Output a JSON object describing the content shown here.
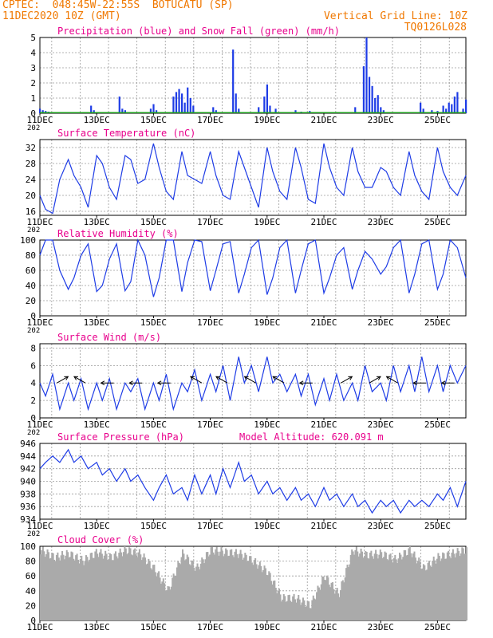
{
  "header": {
    "line1": "CPTEC:  048:45W-22:55S  BOTUCATU (SP)",
    "line2": "11DEC2020 10Z (GMT)",
    "grid_note": "Vertical Grid Line: 10Z",
    "run_id": "TQ0126L028"
  },
  "colors": {
    "orange": "#f07800",
    "magenta": "#e8008c",
    "blue": "#1e3ce6",
    "green": "#1ea01e",
    "gray": "#aaaaaa",
    "grid": "#9a9a9a"
  },
  "x_axis": {
    "dates": [
      "11DEC",
      "13DEC",
      "15DEC",
      "17DEC",
      "19DEC",
      "21DEC",
      "23DEC",
      "25DEC"
    ],
    "date_days": [
      11,
      13,
      15,
      17,
      19,
      21,
      23,
      25
    ],
    "range_days": [
      11.0,
      26.0
    ],
    "stub_label": "202"
  },
  "chart_data": [
    {
      "type": "bar",
      "title": "Precipitation (blue) and Snow Fall (green) (mm/h)",
      "ylim": [
        0,
        5
      ],
      "yticks": [
        "0",
        "1",
        "2",
        "3",
        "4",
        "5"
      ],
      "series": [
        {
          "name": "Precipitation",
          "color": "blue",
          "x": [
            11.0,
            11.1,
            11.2,
            11.3,
            12.8,
            12.9,
            13.8,
            13.9,
            14.0,
            14.9,
            15.0,
            15.1,
            15.7,
            15.8,
            15.9,
            16.0,
            16.1,
            16.2,
            16.3,
            16.4,
            17.1,
            17.2,
            17.8,
            17.9,
            18.0,
            18.7,
            18.9,
            19.0,
            19.1,
            19.3,
            20.0,
            20.2,
            20.5,
            22.1,
            22.4,
            22.5,
            22.6,
            22.7,
            22.8,
            22.9,
            23.0,
            23.1,
            24.4,
            24.5,
            24.8,
            25.0,
            25.2,
            25.3,
            25.4,
            25.5,
            25.6,
            25.7,
            25.9,
            26.0
          ],
          "values": [
            0.3,
            0.2,
            0.15,
            0.1,
            0.5,
            0.2,
            1.1,
            0.3,
            0.2,
            0.3,
            0.6,
            0.2,
            1.1,
            1.4,
            1.6,
            1.3,
            0.7,
            1.7,
            1.0,
            0.5,
            0.4,
            0.2,
            4.2,
            1.3,
            0.3,
            0.4,
            1.1,
            1.9,
            0.5,
            0.3,
            0.2,
            0.1,
            0.15,
            0.4,
            3.1,
            5.0,
            2.4,
            1.8,
            1.0,
            1.2,
            0.4,
            0.2,
            0.7,
            0.3,
            0.2,
            0.15,
            0.5,
            0.3,
            0.7,
            0.6,
            1.1,
            1.4,
            0.3,
            0.9
          ]
        },
        {
          "name": "Snow Fall",
          "color": "green",
          "values": "0"
        }
      ]
    },
    {
      "type": "line",
      "title": "Surface Temperature (nC)",
      "ylim": [
        15,
        34
      ],
      "yticks": [
        16,
        20,
        24,
        28,
        32
      ],
      "series": [
        {
          "name": "Surface Temperature",
          "color": "blue",
          "x": [
            11.0,
            11.2,
            11.45,
            11.7,
            12.0,
            12.2,
            12.45,
            12.7,
            13.0,
            13.2,
            13.45,
            13.7,
            14.0,
            14.2,
            14.45,
            14.7,
            15.0,
            15.2,
            15.45,
            15.7,
            16.0,
            16.2,
            16.45,
            16.7,
            17.0,
            17.2,
            17.45,
            17.7,
            18.0,
            18.2,
            18.45,
            18.7,
            19.0,
            19.2,
            19.45,
            19.7,
            20.0,
            20.2,
            20.45,
            20.7,
            21.0,
            21.2,
            21.45,
            21.7,
            22.0,
            22.2,
            22.45,
            22.7,
            23.0,
            23.2,
            23.45,
            23.7,
            24.0,
            24.2,
            24.45,
            24.7,
            25.0,
            25.2,
            25.45,
            25.7,
            26.0
          ],
          "values": [
            20,
            16.5,
            15.5,
            24,
            29,
            25,
            22,
            17,
            30,
            28,
            22,
            19,
            30,
            29,
            23,
            24,
            33,
            27,
            21,
            19,
            31,
            25,
            24,
            23,
            31,
            25,
            20,
            19,
            31,
            27,
            22,
            17,
            32,
            26,
            21,
            19,
            32,
            27,
            19,
            18,
            33,
            27,
            22,
            20,
            32,
            26,
            22,
            22,
            27,
            26,
            22,
            20,
            31,
            25,
            21,
            19,
            32,
            26,
            22,
            20,
            25
          ]
        }
      ]
    },
    {
      "type": "line",
      "title": "Relative Humidity (%)",
      "ylim": [
        0,
        100
      ],
      "yticks": [
        0,
        20,
        40,
        60,
        80,
        100
      ],
      "series": [
        {
          "name": "Relative Humidity",
          "color": "blue",
          "x": [
            11.0,
            11.2,
            11.45,
            11.7,
            12.0,
            12.2,
            12.45,
            12.7,
            13.0,
            13.2,
            13.45,
            13.7,
            14.0,
            14.2,
            14.45,
            14.7,
            15.0,
            15.2,
            15.45,
            15.7,
            16.0,
            16.2,
            16.45,
            16.7,
            17.0,
            17.2,
            17.45,
            17.7,
            18.0,
            18.2,
            18.45,
            18.7,
            19.0,
            19.2,
            19.45,
            19.7,
            20.0,
            20.2,
            20.45,
            20.7,
            21.0,
            21.2,
            21.45,
            21.7,
            22.0,
            22.2,
            22.45,
            22.7,
            23.0,
            23.2,
            23.45,
            23.7,
            24.0,
            24.2,
            24.45,
            24.7,
            25.0,
            25.2,
            25.45,
            25.7,
            26.0
          ],
          "values": [
            80,
            100,
            100,
            60,
            35,
            50,
            80,
            95,
            32,
            40,
            75,
            95,
            33,
            45,
            100,
            80,
            25,
            50,
            100,
            100,
            32,
            70,
            100,
            98,
            33,
            60,
            95,
            98,
            30,
            55,
            90,
            100,
            28,
            50,
            90,
            100,
            30,
            60,
            95,
            100,
            30,
            50,
            80,
            90,
            35,
            60,
            85,
            75,
            55,
            65,
            90,
            100,
            30,
            55,
            95,
            100,
            35,
            55,
            100,
            90,
            50
          ]
        }
      ]
    },
    {
      "type": "line",
      "title": "Surface Wind (m/s)",
      "ylim": [
        0,
        8.5
      ],
      "yticks": [
        0,
        2,
        4,
        6,
        8
      ],
      "series": [
        {
          "name": "Surface Wind",
          "color": "blue",
          "x": [
            11.0,
            11.2,
            11.45,
            11.7,
            12.0,
            12.2,
            12.45,
            12.7,
            13.0,
            13.2,
            13.45,
            13.7,
            14.0,
            14.2,
            14.45,
            14.7,
            15.0,
            15.2,
            15.45,
            15.7,
            16.0,
            16.2,
            16.45,
            16.7,
            17.0,
            17.2,
            17.45,
            17.7,
            18.0,
            18.2,
            18.45,
            18.7,
            19.0,
            19.2,
            19.45,
            19.7,
            20.0,
            20.2,
            20.45,
            20.7,
            21.0,
            21.2,
            21.45,
            21.7,
            22.0,
            22.2,
            22.45,
            22.7,
            23.0,
            23.2,
            23.45,
            23.7,
            24.0,
            24.2,
            24.45,
            24.7,
            25.0,
            25.2,
            25.45,
            25.7,
            26.0
          ],
          "values": [
            4,
            2.5,
            5,
            1,
            4,
            2,
            4.5,
            1,
            4,
            2,
            4.5,
            1,
            4,
            3,
            4.5,
            1,
            4,
            2,
            5,
            1,
            4,
            3,
            5.5,
            2,
            5,
            3,
            6,
            2,
            7,
            4,
            6,
            3,
            7,
            4,
            5,
            3,
            5,
            2.5,
            5,
            1.5,
            4.5,
            2,
            5,
            2,
            4,
            2,
            6,
            3,
            4,
            2,
            6,
            3,
            6,
            3,
            7,
            3,
            6,
            3,
            6,
            4,
            6
          ]
        }
      ],
      "arrows": [
        {
          "x": 11.6,
          "dir": "ne"
        },
        {
          "x": 12.6,
          "dir": "nw"
        },
        {
          "x": 13.6,
          "dir": "w"
        },
        {
          "x": 14.6,
          "dir": "w"
        },
        {
          "x": 15.6,
          "dir": "w"
        },
        {
          "x": 16.7,
          "dir": "nw"
        },
        {
          "x": 17.6,
          "dir": "nw"
        },
        {
          "x": 18.6,
          "dir": "nw"
        },
        {
          "x": 19.6,
          "dir": "nw"
        },
        {
          "x": 20.6,
          "dir": "w"
        },
        {
          "x": 21.6,
          "dir": "ne"
        },
        {
          "x": 22.6,
          "dir": "ne"
        },
        {
          "x": 23.6,
          "dir": "nw"
        },
        {
          "x": 24.6,
          "dir": "w"
        },
        {
          "x": 25.6,
          "dir": "w"
        }
      ]
    },
    {
      "type": "line",
      "title": "Surface Pressure (hPa)",
      "subtitle": "Model Altitude: 620.091 m",
      "ylim": [
        934,
        946
      ],
      "yticks": [
        934,
        936,
        938,
        940,
        942,
        944,
        946
      ],
      "series": [
        {
          "name": "Surface Pressure",
          "color": "blue",
          "x": [
            11.0,
            11.2,
            11.45,
            11.7,
            12.0,
            12.2,
            12.45,
            12.7,
            13.0,
            13.2,
            13.45,
            13.7,
            14.0,
            14.2,
            14.45,
            14.7,
            15.0,
            15.2,
            15.45,
            15.7,
            16.0,
            16.2,
            16.45,
            16.7,
            17.0,
            17.2,
            17.45,
            17.7,
            18.0,
            18.2,
            18.45,
            18.7,
            19.0,
            19.2,
            19.45,
            19.7,
            20.0,
            20.2,
            20.45,
            20.7,
            21.0,
            21.2,
            21.45,
            21.7,
            22.0,
            22.2,
            22.45,
            22.7,
            23.0,
            23.2,
            23.45,
            23.7,
            24.0,
            24.2,
            24.45,
            24.7,
            25.0,
            25.2,
            25.45,
            25.7,
            26.0
          ],
          "values": [
            942,
            943,
            944,
            943,
            945,
            943,
            944,
            942,
            943,
            941,
            942,
            940,
            942,
            940,
            941,
            939,
            937,
            939,
            941,
            938,
            939,
            937,
            941,
            938,
            941,
            938,
            942,
            939,
            943,
            940,
            941,
            938,
            940,
            938,
            939,
            937,
            939,
            937,
            938,
            936,
            939,
            937,
            938,
            936,
            938,
            936,
            937,
            935,
            937,
            936,
            937,
            935,
            937,
            936,
            937,
            936,
            938,
            937,
            939,
            936,
            940
          ]
        }
      ]
    },
    {
      "type": "area",
      "title": "Cloud Cover (%)",
      "ylim": [
        0,
        100
      ],
      "yticks": [
        0,
        20,
        40,
        60,
        80,
        100
      ],
      "series": [
        {
          "name": "Cloud Cover",
          "color": "gray",
          "x": [
            11.0,
            11.5,
            12.0,
            12.5,
            13.0,
            13.5,
            14.0,
            14.5,
            15.0,
            15.5,
            16.0,
            16.5,
            17.0,
            17.5,
            18.0,
            18.5,
            19.0,
            19.5,
            20.0,
            20.5,
            21.0,
            21.5,
            22.0,
            22.5,
            23.0,
            23.5,
            24.0,
            24.5,
            25.0,
            25.5,
            26.0
          ],
          "values": [
            95,
            85,
            90,
            80,
            92,
            85,
            95,
            90,
            70,
            40,
            90,
            70,
            95,
            92,
            90,
            80,
            65,
            30,
            30,
            20,
            60,
            35,
            95,
            88,
            90,
            82,
            95,
            70,
            85,
            90,
            95
          ]
        }
      ]
    }
  ]
}
